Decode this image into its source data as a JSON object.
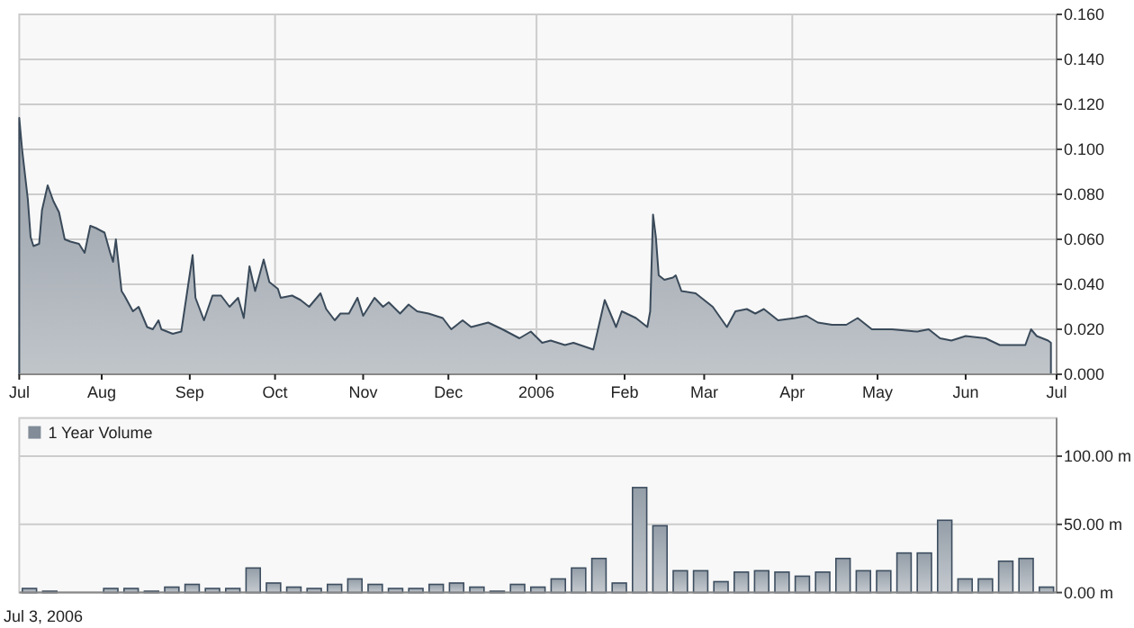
{
  "chart_data": [
    {
      "type": "area",
      "color": "#3a4a5a",
      "grid": true,
      "xlim": [
        "2005-07-03",
        "2006-07-03"
      ],
      "ylim": [
        0,
        0.16
      ],
      "xticks": [
        {
          "value": "2005-07-03",
          "label": "Jul"
        },
        {
          "value": "2005-08-01",
          "label": "Aug"
        },
        {
          "value": "2005-09-01",
          "label": "Sep"
        },
        {
          "value": "2005-10-01",
          "label": "Oct"
        },
        {
          "value": "2005-11-01",
          "label": "Nov"
        },
        {
          "value": "2005-12-01",
          "label": "Dec"
        },
        {
          "value": "2006-01-01",
          "label": "2006"
        },
        {
          "value": "2006-02-01",
          "label": "Feb"
        },
        {
          "value": "2006-03-01",
          "label": "Mar"
        },
        {
          "value": "2006-04-01",
          "label": "Apr"
        },
        {
          "value": "2006-05-01",
          "label": "May"
        },
        {
          "value": "2006-06-01",
          "label": "Jun"
        },
        {
          "value": "2006-07-03",
          "label": "Jul"
        }
      ],
      "yticks": [
        {
          "value": 0,
          "label": "0.000"
        },
        {
          "value": 0.02,
          "label": "0.020"
        },
        {
          "value": 0.04,
          "label": "0.040"
        },
        {
          "value": 0.06,
          "label": "0.060"
        },
        {
          "value": 0.08,
          "label": "0.080"
        },
        {
          "value": 0.1,
          "label": "0.100"
        },
        {
          "value": 0.12,
          "label": "0.120"
        },
        {
          "value": 0.14,
          "label": "0.140"
        },
        {
          "value": 0.16,
          "label": "0.160"
        }
      ],
      "x": [
        "2005-07-03",
        "2005-07-04",
        "2005-07-05",
        "2005-07-06",
        "2005-07-07",
        "2005-07-08",
        "2005-07-10",
        "2005-07-11",
        "2005-07-13",
        "2005-07-15",
        "2005-07-17",
        "2005-07-19",
        "2005-07-21",
        "2005-07-24",
        "2005-07-26",
        "2005-07-28",
        "2005-07-30",
        "2005-08-02",
        "2005-08-04",
        "2005-08-05",
        "2005-08-06",
        "2005-08-08",
        "2005-08-09",
        "2005-08-12",
        "2005-08-14",
        "2005-08-17",
        "2005-08-19",
        "2005-08-21",
        "2005-08-22",
        "2005-08-26",
        "2005-08-29",
        "2005-08-31",
        "2005-09-02",
        "2005-09-03",
        "2005-09-06",
        "2005-09-09",
        "2005-09-12",
        "2005-09-15",
        "2005-09-18",
        "2005-09-20",
        "2005-09-22",
        "2005-09-24",
        "2005-09-27",
        "2005-09-29",
        "2005-10-02",
        "2005-10-03",
        "2005-10-07",
        "2005-10-10",
        "2005-10-13",
        "2005-10-17",
        "2005-10-19",
        "2005-10-22",
        "2005-10-24",
        "2005-10-27",
        "2005-10-30",
        "2005-11-01",
        "2005-11-05",
        "2005-11-08",
        "2005-11-10",
        "2005-11-14",
        "2005-11-17",
        "2005-11-20",
        "2005-11-24",
        "2005-11-29",
        "2005-12-02",
        "2005-12-06",
        "2005-12-09",
        "2005-12-15",
        "2005-12-20",
        "2005-12-26",
        "2005-12-30",
        "2006-01-03",
        "2006-01-06",
        "2006-01-11",
        "2006-01-14",
        "2006-01-21",
        "2006-01-25",
        "2006-01-29",
        "2006-01-31",
        "2006-02-05",
        "2006-02-09",
        "2006-02-10",
        "2006-02-11",
        "2006-02-12",
        "2006-02-13",
        "2006-02-15",
        "2006-02-18",
        "2006-02-19",
        "2006-02-21",
        "2006-02-26",
        "2006-03-04",
        "2006-03-09",
        "2006-03-12",
        "2006-03-16",
        "2006-03-19",
        "2006-03-22",
        "2006-03-27",
        "2006-04-02",
        "2006-04-06",
        "2006-04-10",
        "2006-04-15",
        "2006-04-20",
        "2006-04-24",
        "2006-04-29",
        "2006-05-06",
        "2006-05-15",
        "2006-05-19",
        "2006-05-23",
        "2006-05-27",
        "2006-06-01",
        "2006-06-08",
        "2006-06-13",
        "2006-06-18",
        "2006-06-22",
        "2006-06-24",
        "2006-06-26",
        "2006-06-30",
        "2006-07-01"
      ],
      "values": [
        0.114,
        0.1,
        0.089,
        0.078,
        0.061,
        0.057,
        0.058,
        0.073,
        0.084,
        0.077,
        0.072,
        0.06,
        0.059,
        0.058,
        0.054,
        0.066,
        0.065,
        0.063,
        0.054,
        0.05,
        0.06,
        0.037,
        0.035,
        0.028,
        0.03,
        0.021,
        0.02,
        0.024,
        0.02,
        0.018,
        0.019,
        0.036,
        0.053,
        0.034,
        0.024,
        0.035,
        0.035,
        0.03,
        0.034,
        0.025,
        0.048,
        0.037,
        0.051,
        0.041,
        0.038,
        0.034,
        0.035,
        0.033,
        0.03,
        0.036,
        0.029,
        0.024,
        0.027,
        0.027,
        0.034,
        0.026,
        0.034,
        0.03,
        0.032,
        0.027,
        0.031,
        0.028,
        0.027,
        0.025,
        0.02,
        0.024,
        0.021,
        0.023,
        0.02,
        0.016,
        0.019,
        0.014,
        0.015,
        0.013,
        0.014,
        0.011,
        0.033,
        0.021,
        0.028,
        0.025,
        0.021,
        0.028,
        0.071,
        0.061,
        0.044,
        0.042,
        0.043,
        0.044,
        0.037,
        0.036,
        0.03,
        0.021,
        0.028,
        0.029,
        0.027,
        0.029,
        0.024,
        0.025,
        0.026,
        0.023,
        0.022,
        0.022,
        0.025,
        0.02,
        0.02,
        0.019,
        0.02,
        0.016,
        0.015,
        0.017,
        0.016,
        0.013,
        0.013,
        0.013,
        0.02,
        0.017,
        0.015,
        0.014
      ]
    },
    {
      "type": "bar",
      "grid": "y",
      "legend": "top left",
      "tick_labels": "y",
      "ylim": [
        0,
        128
      ],
      "yticks": [
        {
          "value": 0,
          "label": "0.00 m"
        },
        {
          "value": 50,
          "label": "50.00 m"
        },
        {
          "value": 100,
          "label": "100.00 m"
        }
      ],
      "annotations": [
        "Jul 3, 2006"
      ],
      "categories": [
        null,
        null,
        null,
        null,
        null,
        null,
        null,
        null,
        null,
        null,
        null,
        null,
        null,
        null,
        null,
        null,
        null,
        null,
        null,
        null,
        null,
        null,
        null,
        null,
        null,
        null,
        null,
        null,
        null,
        null,
        null,
        null,
        null,
        null,
        null,
        null,
        null,
        null,
        null,
        null,
        null,
        null,
        null,
        null,
        null,
        null,
        null,
        null,
        null,
        null,
        null
      ],
      "series": [
        {
          "name": "1 Year Volume",
          "color": "#3d4e60",
          "values": [
            3,
            1,
            null,
            null,
            3,
            3,
            1,
            4,
            6,
            3,
            3,
            18,
            7,
            4,
            3,
            6,
            10,
            6,
            3,
            3,
            6,
            7,
            4,
            1,
            6,
            4,
            10,
            18,
            25,
            7,
            77,
            49,
            16,
            16,
            8,
            15,
            16,
            15,
            12,
            15,
            25,
            16,
            16,
            29,
            29,
            53,
            10,
            10,
            23,
            25,
            4
          ]
        }
      ]
    }
  ]
}
